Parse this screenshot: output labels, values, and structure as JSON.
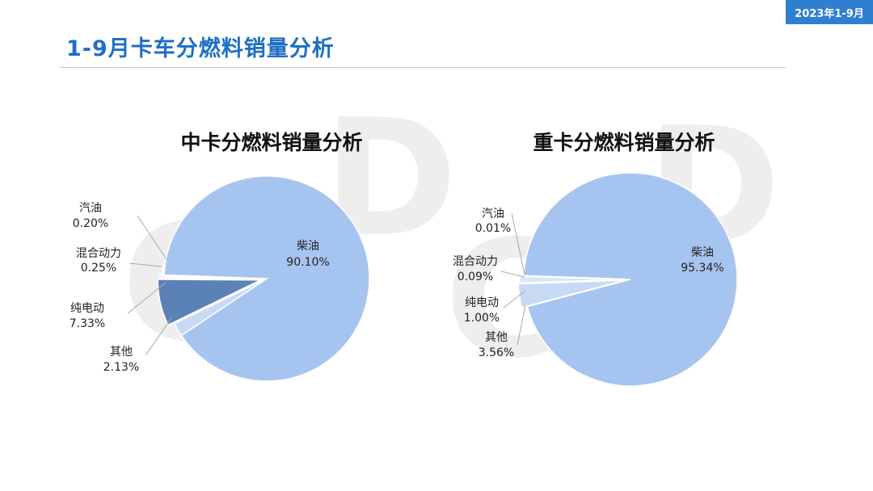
{
  "header": {
    "title": "1-9月卡车分燃料销量分析",
    "badge": "2023年1-9月"
  },
  "colors": {
    "accent": "#2f7fd1",
    "title": "#1f6fc4",
    "diesel": "#a6c4f0",
    "gasoline": "#3b6eb0",
    "hybrid": "#dbe6f5",
    "electric": "#5b82b6",
    "other": "#c7d9f5"
  },
  "chart_data": [
    {
      "type": "pie",
      "title": "中卡分燃料销量分析",
      "slices": [
        {
          "label": "柴油",
          "value": 90.1,
          "display": "90.10%",
          "color": "#a6c4f0"
        },
        {
          "label": "汽油",
          "value": 0.2,
          "display": "0.20%",
          "color": "#3b6eb0"
        },
        {
          "label": "混合动力",
          "value": 0.25,
          "display": "0.25%",
          "color": "#dbe6f5"
        },
        {
          "label": "纯电动",
          "value": 7.33,
          "display": "7.33%",
          "color": "#5b82b6"
        },
        {
          "label": "其他",
          "value": 2.13,
          "display": "2.13%",
          "color": "#c7d9f5"
        }
      ]
    },
    {
      "type": "pie",
      "title": "重卡分燃料销量分析",
      "slices": [
        {
          "label": "柴油",
          "value": 95.34,
          "display": "95.34%",
          "color": "#a6c4f0"
        },
        {
          "label": "汽油",
          "value": 0.01,
          "display": "0.01%",
          "color": "#3b6eb0"
        },
        {
          "label": "混合动力",
          "value": 0.09,
          "display": "0.09%",
          "color": "#5b82b6"
        },
        {
          "label": "纯电动",
          "value": 1.0,
          "display": "1.00%",
          "color": "#dbe6f5"
        },
        {
          "label": "其他",
          "value": 3.56,
          "display": "3.56%",
          "color": "#c7d9f5"
        }
      ]
    }
  ]
}
